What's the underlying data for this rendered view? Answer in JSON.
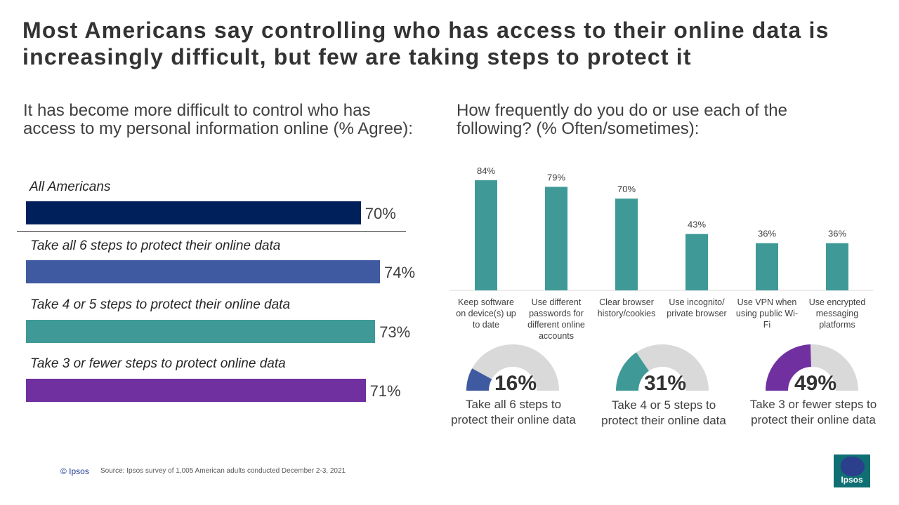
{
  "title": "Most Americans say controlling who has access to their online data is increasingly difficult, but few are taking steps to protect it",
  "left": {
    "question": "It has become more difficult to control who has access to my personal information online (% Agree):"
  },
  "right": {
    "question": "How frequently do you do or use each of the following? (% Often/sometimes):"
  },
  "chart_data": [
    {
      "type": "bar",
      "orientation": "horizontal",
      "title": "It has become more difficult to control who has access to my personal information online (% Agree):",
      "categories": [
        "All Americans",
        "Take all 6 steps to protect their online data",
        "Take 4 or 5 steps to protect their online data",
        "Take 3 or fewer steps to protect online data"
      ],
      "values": [
        70,
        74,
        73,
        71
      ],
      "labels": [
        "70%",
        "74%",
        "73%",
        "71%"
      ],
      "colors": [
        "#00205b",
        "#3f5aa0",
        "#3f9a97",
        "#7030a0"
      ],
      "xlim": [
        0,
        74
      ]
    },
    {
      "type": "bar",
      "title": "How frequently do you do or use each of the following? (% Often/sometimes):",
      "categories": [
        "Keep software on device(s) up to date",
        "Use different passwords for different online accounts",
        "Clear browser history/cookies",
        "Use incognito/ private browser",
        "Use VPN when using public Wi-Fi",
        "Use encrypted messaging platforms"
      ],
      "category_lines": [
        [
          "Keep software",
          "on device(s) up",
          "to date"
        ],
        [
          "Use different",
          "passwords for",
          "different online",
          "accounts"
        ],
        [
          "Clear browser",
          "history/cookies"
        ],
        [
          "Use incognito/",
          "private browser"
        ],
        [
          "Use VPN when",
          "using public Wi-",
          "Fi"
        ],
        [
          "Use encrypted",
          "messaging",
          "platforms"
        ]
      ],
      "values": [
        84,
        79,
        70,
        43,
        36,
        36
      ],
      "labels": [
        "84%",
        "79%",
        "70%",
        "43%",
        "36%",
        "36%"
      ],
      "color": "#3f9a97",
      "ylim": [
        0,
        90
      ]
    },
    {
      "type": "pie",
      "subtype": "half-donut gauge",
      "items": [
        {
          "label": "Take all 6 steps to protect their online data",
          "lines": [
            "Take all 6 steps to",
            "protect their online data"
          ],
          "value": 16,
          "display": "16%",
          "color": "#3f5aa0"
        },
        {
          "label": "Take 4 or 5 steps to protect their online data",
          "lines": [
            "Take 4 or 5 steps to",
            "protect their online data"
          ],
          "value": 31,
          "display": "31%",
          "color": "#3f9a97"
        },
        {
          "label": "Take 3 or fewer steps to protect their online data",
          "lines": [
            "Take 3 or fewer steps to",
            "protect their online data"
          ],
          "value": 49,
          "display": "49%",
          "color": "#7030a0"
        }
      ],
      "track_color": "#d9d9d9"
    }
  ],
  "footer": {
    "copyright": "© Ipsos",
    "source": "Source:  Ipsos survey of 1,005 American adults conducted December 2-3, 2021"
  },
  "logo": {
    "text": "Ipsos"
  }
}
